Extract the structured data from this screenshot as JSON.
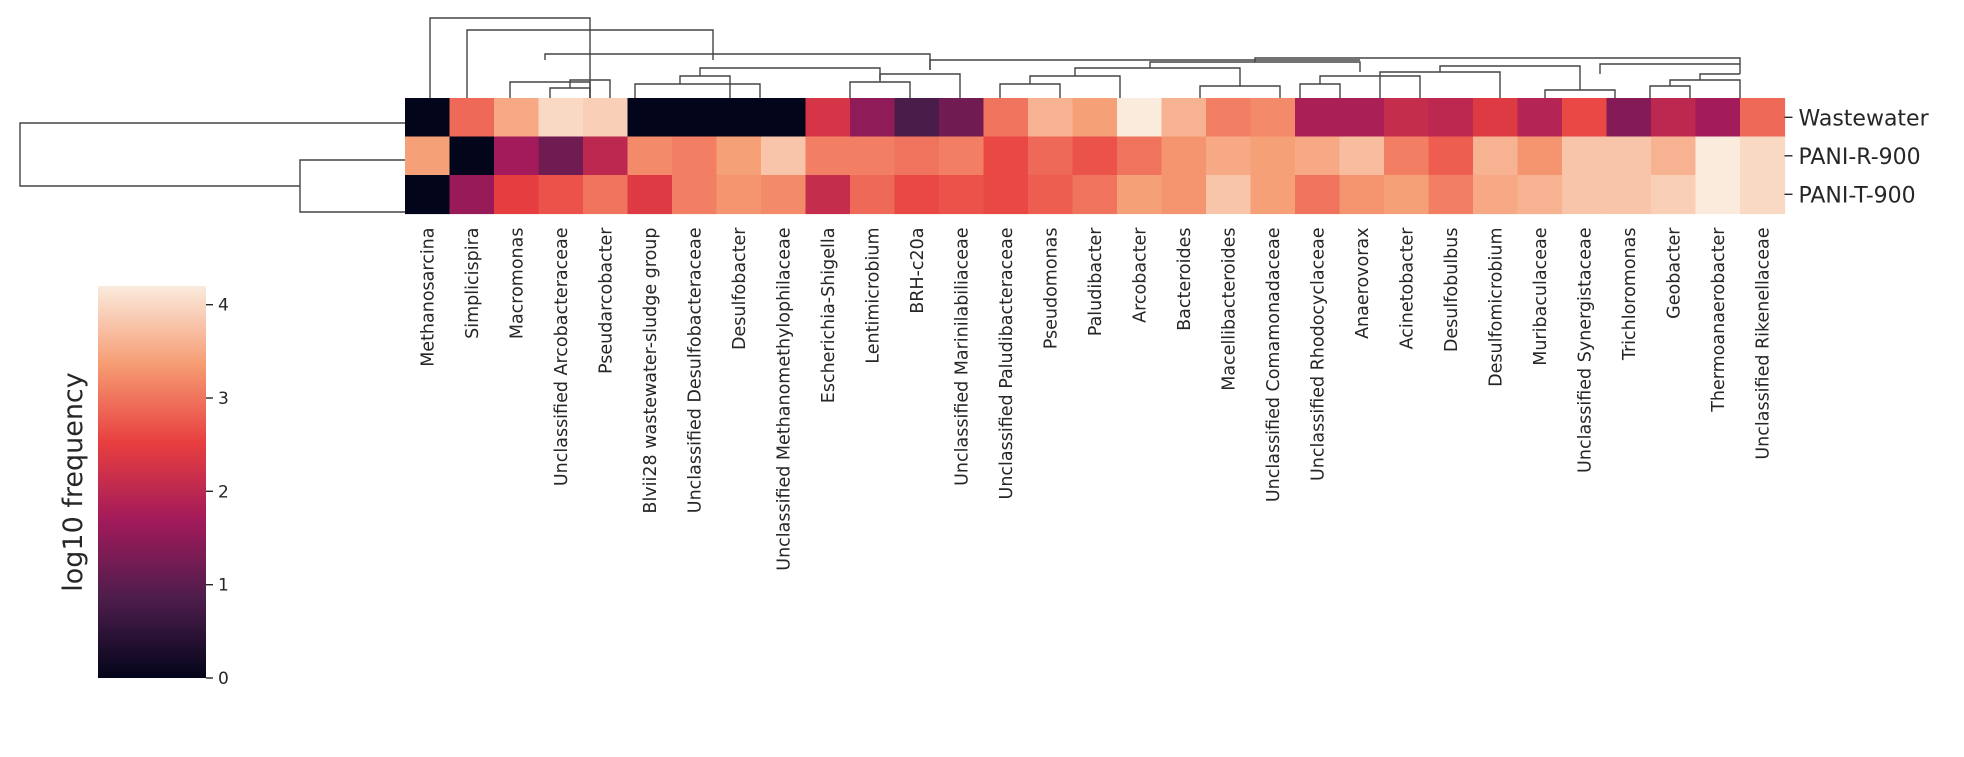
{
  "chart_data": {
    "type": "heatmap",
    "title": "",
    "rows": [
      "Wastewater",
      "PANI-R-900",
      "PANI-T-900"
    ],
    "columns": [
      "Methanosarcina",
      "Simplicispira",
      "Macromonas",
      "Unclassified Arcobacteraceae",
      "Pseudarcobacter",
      "Blvii28 wastewater-sludge group",
      "Unclassified Desulfobacteraceae",
      "Desulfobacter",
      "Unclassified Methanomethylophilaceae",
      "Escherichia-Shigella",
      "Lentimicrobium",
      "BRH-c20a",
      "Unclassified Marinilabiliaceae",
      "Unclassified Paludibacteraceae",
      "Pseudomonas",
      "Paludibacter",
      "Arcobacter",
      "Bacteroides",
      "Macellibacteroides",
      "Unclassified Comamonadaceae",
      "Unclassified Rhodocyclaceae",
      "Anaerovorax",
      "Acinetobacter",
      "Desulfobulbus",
      "Desulfomicrobium",
      "Muribaculaceae",
      "Unclassified Synergistaceae",
      "Trichloromonas",
      "Geobacter",
      "Thermoanaerobacter",
      "Unclassified Rikenellaceae"
    ],
    "values": [
      [
        0.0,
        2.9,
        3.5,
        4.0,
        3.9,
        0.0,
        0.0,
        0.0,
        0.0,
        2.3,
        1.5,
        0.8,
        1.2,
        3.0,
        3.6,
        3.4,
        4.2,
        3.6,
        3.1,
        3.2,
        1.8,
        1.8,
        2.1,
        2.0,
        2.4,
        1.9,
        2.6,
        1.4,
        2.0,
        1.7,
        2.9
      ],
      [
        3.4,
        0.0,
        1.7,
        1.2,
        2.0,
        3.2,
        3.1,
        3.4,
        3.8,
        3.1,
        3.1,
        3.0,
        3.1,
        2.6,
        2.9,
        2.7,
        3.0,
        3.3,
        3.5,
        3.4,
        3.5,
        3.7,
        3.1,
        2.8,
        3.6,
        3.3,
        3.8,
        3.8,
        3.6,
        4.2,
        4.0
      ],
      [
        0.0,
        1.6,
        2.5,
        2.7,
        3.0,
        2.4,
        3.1,
        3.3,
        3.2,
        2.1,
        2.9,
        2.6,
        2.7,
        2.6,
        2.8,
        3.0,
        3.4,
        3.3,
        3.8,
        3.4,
        3.0,
        3.3,
        3.4,
        3.1,
        3.5,
        3.6,
        3.8,
        3.8,
        3.9,
        4.2,
        4.0
      ]
    ],
    "colorbar": {
      "label": "log10 frequency",
      "ticks": [
        0,
        1,
        2,
        3,
        4
      ],
      "range": [
        0,
        4.2
      ],
      "colormap": [
        "#03051a",
        "#4c1d4b",
        "#a11a5b",
        "#e83f3f",
        "#f69c73",
        "#faebdd"
      ]
    },
    "row_dendrogram": true,
    "column_dendrogram": true
  }
}
